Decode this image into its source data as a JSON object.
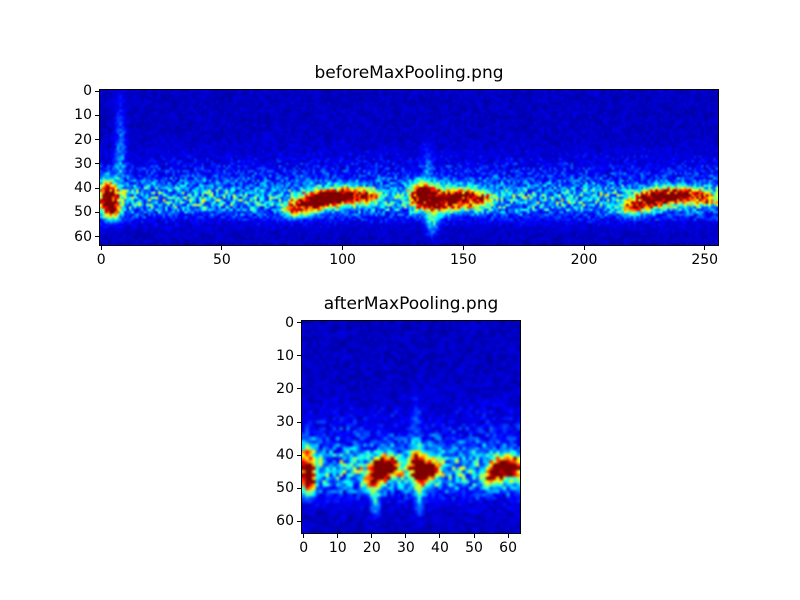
{
  "figure": {
    "background_color": "#ffffff",
    "frame_color": "#000000"
  },
  "chart_data": [
    {
      "type": "heatmap",
      "title": "beforeMaxPooling.png",
      "cols": 256,
      "rows": 64,
      "xlim": [
        -0.5,
        255.5
      ],
      "ylim": [
        -0.5,
        63.5
      ],
      "x_ticks": [
        0,
        50,
        100,
        150,
        200,
        250
      ],
      "y_ticks": [
        0,
        10,
        20,
        30,
        40,
        50,
        60
      ],
      "colormap": "jet",
      "grid": false,
      "legend": false,
      "seed": 42,
      "background_level": 0.03,
      "noise_level": 0.07,
      "bands": [
        {
          "row": 45,
          "sigma": 4.5,
          "amplitude": 0.3
        },
        {
          "row": 39,
          "sigma": 8.0,
          "amplitude": 0.13
        }
      ],
      "hotspots": [
        {
          "x": 3,
          "y": 44,
          "sx": 2.5,
          "sy": 4.5,
          "a": 1.1
        },
        {
          "x": 5,
          "y": 49,
          "sx": 2.0,
          "sy": 2.5,
          "a": 0.7
        },
        {
          "x": 8,
          "y": 24,
          "sx": 1.6,
          "sy": 13.0,
          "a": 0.2
        },
        {
          "x": 80,
          "y": 49,
          "sx": 3.5,
          "sy": 2.2,
          "a": 0.65
        },
        {
          "x": 87,
          "y": 46,
          "sx": 4.0,
          "sy": 2.5,
          "a": 0.95
        },
        {
          "x": 95,
          "y": 44,
          "sx": 5.0,
          "sy": 2.5,
          "a": 1.0
        },
        {
          "x": 104,
          "y": 43,
          "sx": 5.0,
          "sy": 2.2,
          "a": 0.75
        },
        {
          "x": 112,
          "y": 44,
          "sx": 3.0,
          "sy": 2.0,
          "a": 0.45
        },
        {
          "x": 133,
          "y": 43,
          "sx": 3.5,
          "sy": 3.5,
          "a": 1.05
        },
        {
          "x": 141,
          "y": 45,
          "sx": 4.5,
          "sy": 3.0,
          "a": 0.95
        },
        {
          "x": 150,
          "y": 44,
          "sx": 4.5,
          "sy": 2.8,
          "a": 0.8
        },
        {
          "x": 158,
          "y": 45,
          "sx": 3.0,
          "sy": 2.2,
          "a": 0.5
        },
        {
          "x": 137,
          "y": 53,
          "sx": 1.8,
          "sy": 4.0,
          "a": 0.35
        },
        {
          "x": 135,
          "y": 30,
          "sx": 1.5,
          "sy": 6.0,
          "a": 0.12
        },
        {
          "x": 220,
          "y": 48,
          "sx": 3.5,
          "sy": 2.2,
          "a": 0.6
        },
        {
          "x": 227,
          "y": 45,
          "sx": 4.0,
          "sy": 2.5,
          "a": 0.9
        },
        {
          "x": 235,
          "y": 43,
          "sx": 4.5,
          "sy": 2.3,
          "a": 0.95
        },
        {
          "x": 244,
          "y": 43,
          "sx": 3.5,
          "sy": 2.2,
          "a": 0.75
        },
        {
          "x": 251,
          "y": 44,
          "sx": 2.5,
          "sy": 2.0,
          "a": 0.55
        }
      ]
    },
    {
      "type": "heatmap",
      "title": "afterMaxPooling.png",
      "cols": 64,
      "rows": 64,
      "xlim": [
        -0.5,
        63.5
      ],
      "ylim": [
        -0.5,
        63.5
      ],
      "x_ticks": [
        0,
        10,
        20,
        30,
        40,
        50,
        60
      ],
      "y_ticks": [
        0,
        10,
        20,
        30,
        40,
        50,
        60
      ],
      "colormap": "jet",
      "grid": false,
      "legend": false,
      "seed": 1337,
      "background_level": 0.03,
      "noise_level": 0.07,
      "bands": [
        {
          "row": 45,
          "sigma": 4.5,
          "amplitude": 0.3
        },
        {
          "row": 39,
          "sigma": 8.0,
          "amplitude": 0.13
        }
      ],
      "hotspots": [
        {
          "x": 1,
          "y": 44,
          "sx": 1.5,
          "sy": 4.0,
          "a": 1.1
        },
        {
          "x": 2,
          "y": 49,
          "sx": 1.2,
          "sy": 2.0,
          "a": 0.6
        },
        {
          "x": 20,
          "y": 48,
          "sx": 1.5,
          "sy": 2.0,
          "a": 0.6
        },
        {
          "x": 22,
          "y": 45,
          "sx": 1.8,
          "sy": 2.4,
          "a": 0.95
        },
        {
          "x": 24,
          "y": 43,
          "sx": 1.8,
          "sy": 2.2,
          "a": 0.9
        },
        {
          "x": 27,
          "y": 44,
          "sx": 1.3,
          "sy": 2.0,
          "a": 0.5
        },
        {
          "x": 21,
          "y": 54,
          "sx": 0.9,
          "sy": 3.0,
          "a": 0.3
        },
        {
          "x": 33,
          "y": 43,
          "sx": 1.4,
          "sy": 3.0,
          "a": 1.0
        },
        {
          "x": 35,
          "y": 45,
          "sx": 1.8,
          "sy": 2.6,
          "a": 0.9
        },
        {
          "x": 38,
          "y": 44,
          "sx": 1.6,
          "sy": 2.4,
          "a": 0.7
        },
        {
          "x": 34,
          "y": 53,
          "sx": 0.8,
          "sy": 3.5,
          "a": 0.3
        },
        {
          "x": 33,
          "y": 30,
          "sx": 0.8,
          "sy": 6.0,
          "a": 0.12
        },
        {
          "x": 55,
          "y": 47,
          "sx": 1.4,
          "sy": 2.0,
          "a": 0.6
        },
        {
          "x": 57,
          "y": 44,
          "sx": 1.7,
          "sy": 2.4,
          "a": 0.9
        },
        {
          "x": 60,
          "y": 43,
          "sx": 1.6,
          "sy": 2.2,
          "a": 0.85
        },
        {
          "x": 62,
          "y": 44,
          "sx": 1.2,
          "sy": 2.0,
          "a": 0.6
        }
      ]
    }
  ]
}
